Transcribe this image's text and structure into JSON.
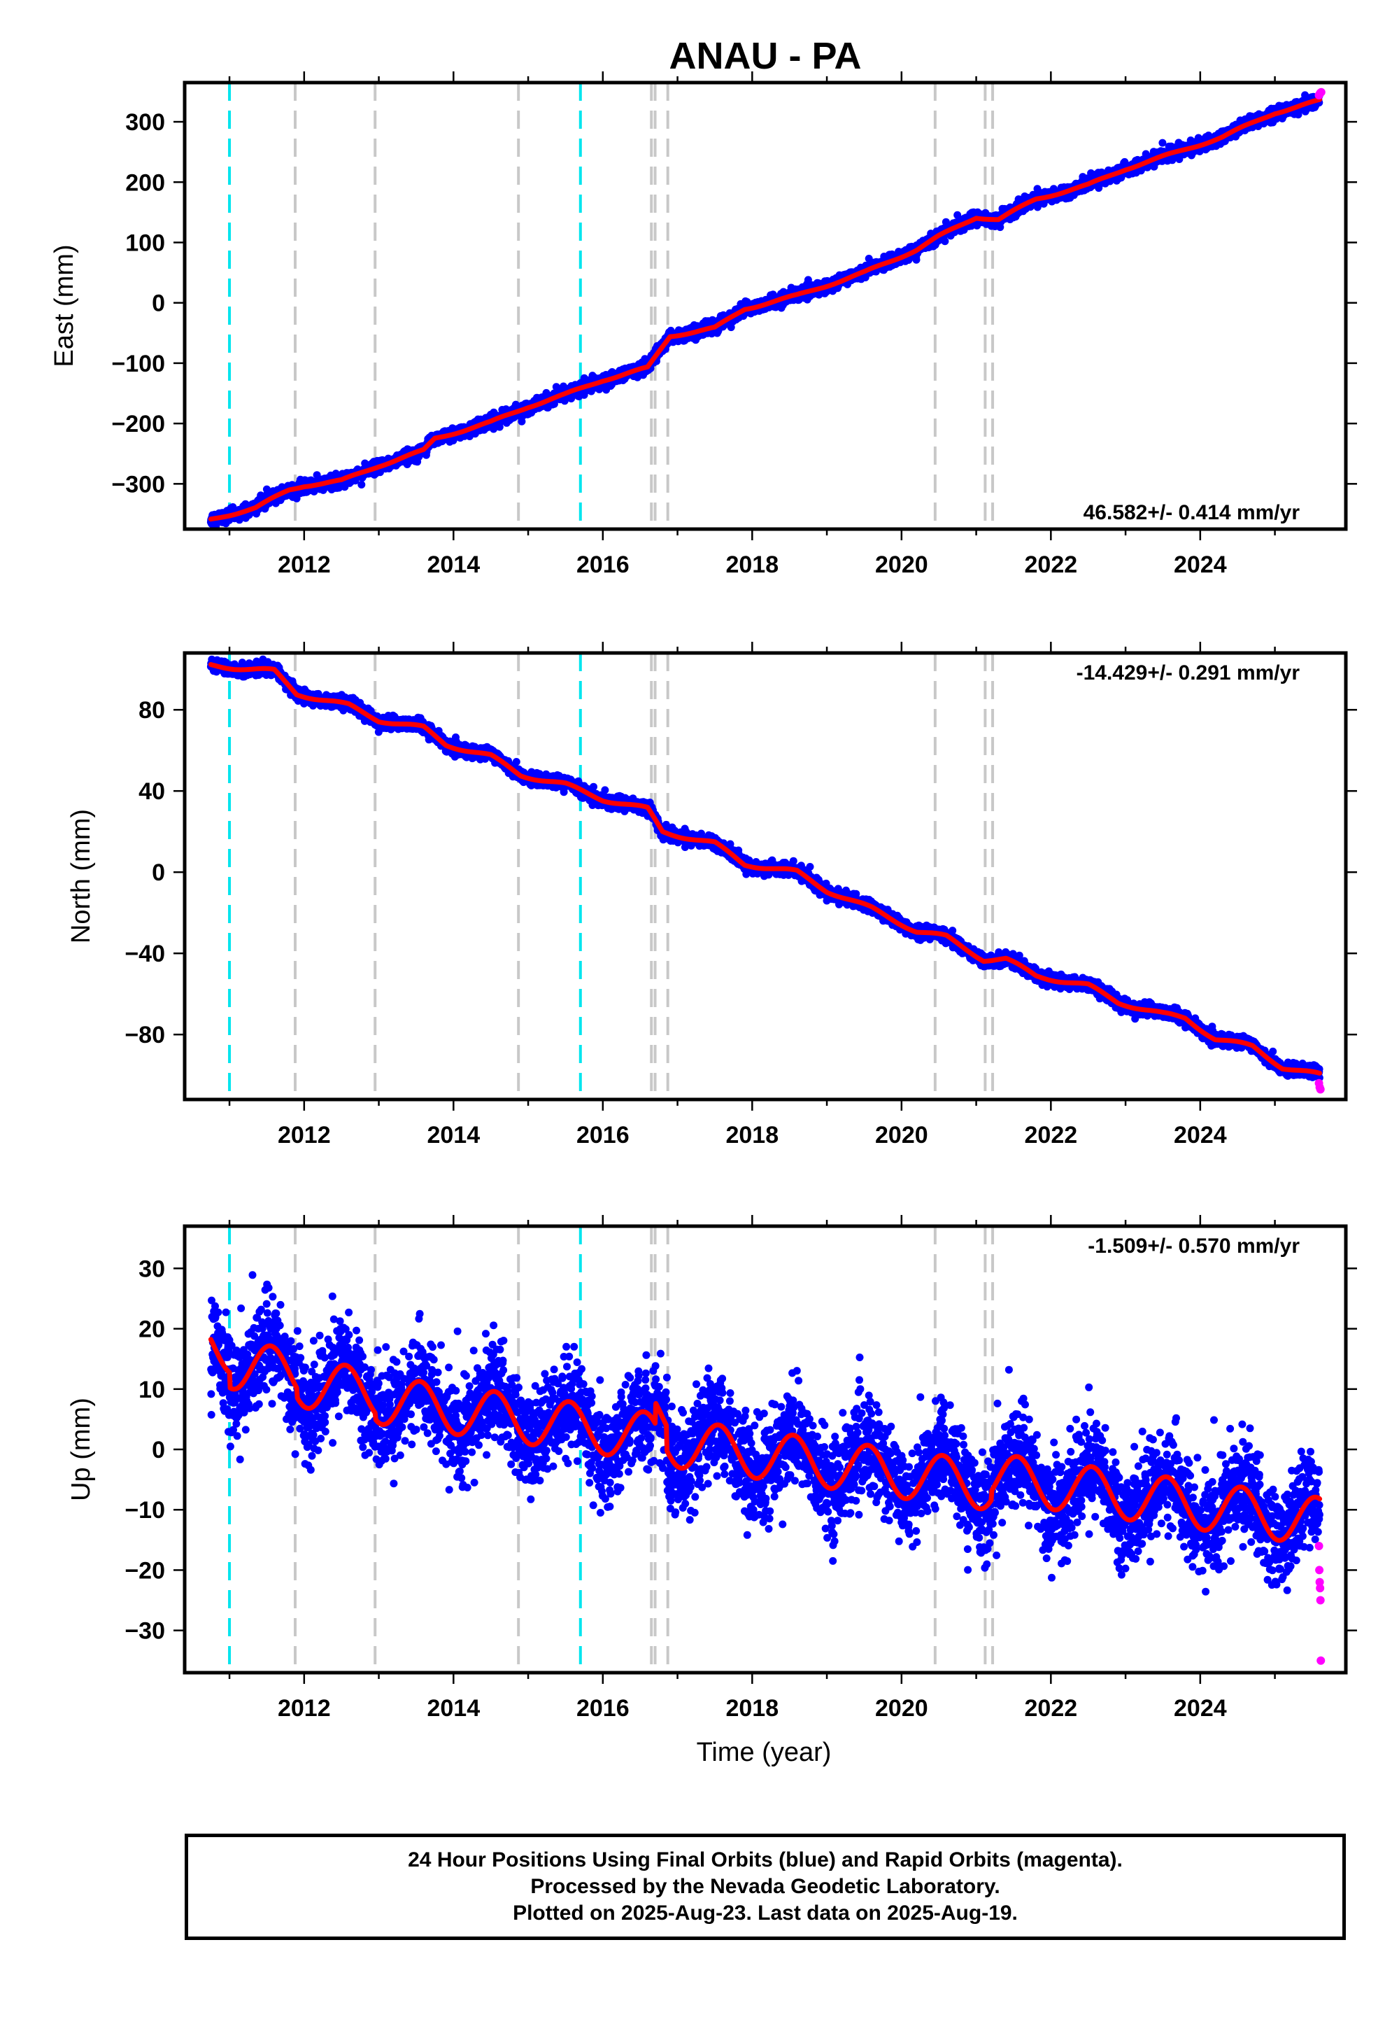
{
  "title": "ANAU - PA",
  "colors": {
    "final_orbits": "#0000ff",
    "rapid_orbits": "#ff00ff",
    "model_fit": "#ff0000",
    "equipment_change": "#c8c8c8",
    "earthquake": "#00e5ee"
  },
  "footer": {
    "line1": "24 Hour Positions Using Final Orbits (blue) and Rapid Orbits (magenta).",
    "line2": "Processed by the Nevada Geodetic Laboratory.",
    "line3": "Plotted on 2025-Aug-23. Last data on 2025-Aug-19."
  },
  "chart_data": [
    {
      "type": "scatter",
      "name": "east",
      "ylabel": "East (mm)",
      "xlabel": "",
      "rate_label": "46.582+/- 0.414 mm/yr",
      "xlim": [
        2010.4,
        2025.95
      ],
      "ylim": [
        -375,
        365
      ],
      "x_ticks": [
        2012,
        2014,
        2016,
        2018,
        2020,
        2022,
        2024
      ],
      "x_tick_labels": [
        "2012",
        "2014",
        "2016",
        "2018",
        "2020",
        "2022",
        "2024"
      ],
      "y_ticks": [
        300,
        200,
        100,
        0,
        -100,
        -200,
        -300
      ],
      "y_tick_labels": [
        "300",
        "200",
        "100",
        "0",
        "−100",
        "−200",
        "−300"
      ],
      "fit_knots": [
        [
          2010.75,
          -359
        ],
        [
          2011.35,
          -340
        ],
        [
          2011.8,
          -310
        ],
        [
          2012.0,
          -303
        ],
        [
          2012.5,
          -295
        ],
        [
          2013.0,
          -270
        ],
        [
          2013.6,
          -245
        ],
        [
          2013.75,
          -225
        ],
        [
          2014.5,
          -198
        ],
        [
          2015.0,
          -172
        ],
        [
          2015.5,
          -152
        ],
        [
          2016.0,
          -128
        ],
        [
          2016.6,
          -108
        ],
        [
          2016.9,
          -55
        ],
        [
          2017.5,
          -42
        ],
        [
          2017.9,
          -10
        ],
        [
          2018.6,
          12
        ],
        [
          2019.5,
          50
        ],
        [
          2020.2,
          88
        ],
        [
          2020.5,
          110
        ],
        [
          2021.0,
          142
        ],
        [
          2021.3,
          138
        ],
        [
          2021.8,
          172
        ],
        [
          2022.5,
          195
        ],
        [
          2023.0,
          222
        ],
        [
          2023.7,
          250
        ],
        [
          2024.3,
          275
        ],
        [
          2025.0,
          315
        ],
        [
          2025.6,
          335
        ]
      ],
      "noise_mm": 5,
      "annual_amp_mm": 2,
      "jumps": [],
      "rapid_points": [
        [
          2025.59,
          344
        ],
        [
          2025.6,
          346
        ],
        [
          2025.61,
          348
        ],
        [
          2025.62,
          349
        ]
      ]
    },
    {
      "type": "scatter",
      "name": "north",
      "ylabel": "North (mm)",
      "xlabel": "",
      "rate_label": "-14.429+/- 0.291 mm/yr",
      "xlim": [
        2010.4,
        2025.95
      ],
      "ylim": [
        -112,
        108
      ],
      "x_ticks": [
        2012,
        2014,
        2016,
        2018,
        2020,
        2022,
        2024
      ],
      "x_tick_labels": [
        "2012",
        "2014",
        "2016",
        "2018",
        "2020",
        "2022",
        "2024"
      ],
      "y_ticks": [
        80,
        40,
        0,
        -40,
        -80
      ],
      "y_tick_labels": [
        "80",
        "40",
        "0",
        "−40",
        "−80"
      ],
      "fit_knots": [
        [
          2010.75,
          102
        ],
        [
          2011.3,
          100
        ],
        [
          2011.6,
          99
        ],
        [
          2011.9,
          88
        ],
        [
          2012.6,
          82
        ],
        [
          2013.0,
          75
        ],
        [
          2013.6,
          71
        ],
        [
          2013.9,
          63
        ],
        [
          2014.5,
          57
        ],
        [
          2014.9,
          48
        ],
        [
          2015.5,
          43
        ],
        [
          2016.0,
          36
        ],
        [
          2016.6,
          31
        ],
        [
          2016.8,
          20
        ],
        [
          2017.5,
          14
        ],
        [
          2017.9,
          4
        ],
        [
          2018.6,
          0
        ],
        [
          2019.0,
          -9
        ],
        [
          2019.6,
          -18
        ],
        [
          2020.2,
          -29
        ],
        [
          2020.6,
          -32
        ],
        [
          2021.1,
          -43
        ],
        [
          2021.4,
          -43
        ],
        [
          2021.8,
          -51
        ],
        [
          2022.5,
          -56
        ],
        [
          2022.9,
          -64
        ],
        [
          2023.5,
          -70
        ],
        [
          2023.8,
          -72
        ],
        [
          2024.2,
          -82
        ],
        [
          2024.7,
          -86
        ],
        [
          2025.1,
          -96
        ],
        [
          2025.6,
          -100
        ]
      ],
      "noise_mm": 1.5,
      "annual_amp_mm": 1,
      "jumps": [],
      "rapid_points": [
        [
          2025.59,
          -104
        ],
        [
          2025.6,
          -106
        ],
        [
          2025.61,
          -107
        ]
      ]
    },
    {
      "type": "scatter",
      "name": "up",
      "ylabel": "Up (mm)",
      "xlabel": "Time (year)",
      "rate_label": "-1.509+/- 0.570 mm/yr",
      "xlim": [
        2010.4,
        2025.95
      ],
      "ylim": [
        -37,
        37
      ],
      "x_ticks": [
        2012,
        2014,
        2016,
        2018,
        2020,
        2022,
        2024
      ],
      "x_tick_labels": [
        "2012",
        "2014",
        "2016",
        "2018",
        "2020",
        "2022",
        "2024"
      ],
      "y_ticks": [
        30,
        20,
        10,
        0,
        -10,
        -20,
        -30
      ],
      "y_tick_labels": [
        "30",
        "20",
        "10",
        "0",
        "−10",
        "−20",
        "−30"
      ],
      "fit_knots": [
        [
          2010.75,
          17
        ],
        [
          2025.6,
          -8
        ]
      ],
      "noise_mm": 4,
      "annual_amp_mm": 4,
      "jumps": [
        [
          2011.0,
          -2.5
        ],
        [
          2011.9,
          -1.5
        ],
        [
          2012.95,
          -1.0
        ],
        [
          2016.7,
          3.5
        ],
        [
          2016.85,
          -4.0
        ],
        [
          2021.2,
          1.5
        ]
      ],
      "rapid_points": [
        [
          2025.59,
          -16
        ],
        [
          2025.595,
          -20
        ],
        [
          2025.6,
          -22
        ],
        [
          2025.605,
          -23
        ],
        [
          2025.61,
          -25
        ],
        [
          2025.615,
          -35
        ]
      ]
    }
  ],
  "events": {
    "equipment_change": [
      2011.88,
      2012.95,
      2014.87,
      2016.65,
      2016.7,
      2016.87,
      2020.45,
      2021.12,
      2021.22
    ],
    "earthquake": [
      2011.0,
      2015.7
    ]
  }
}
